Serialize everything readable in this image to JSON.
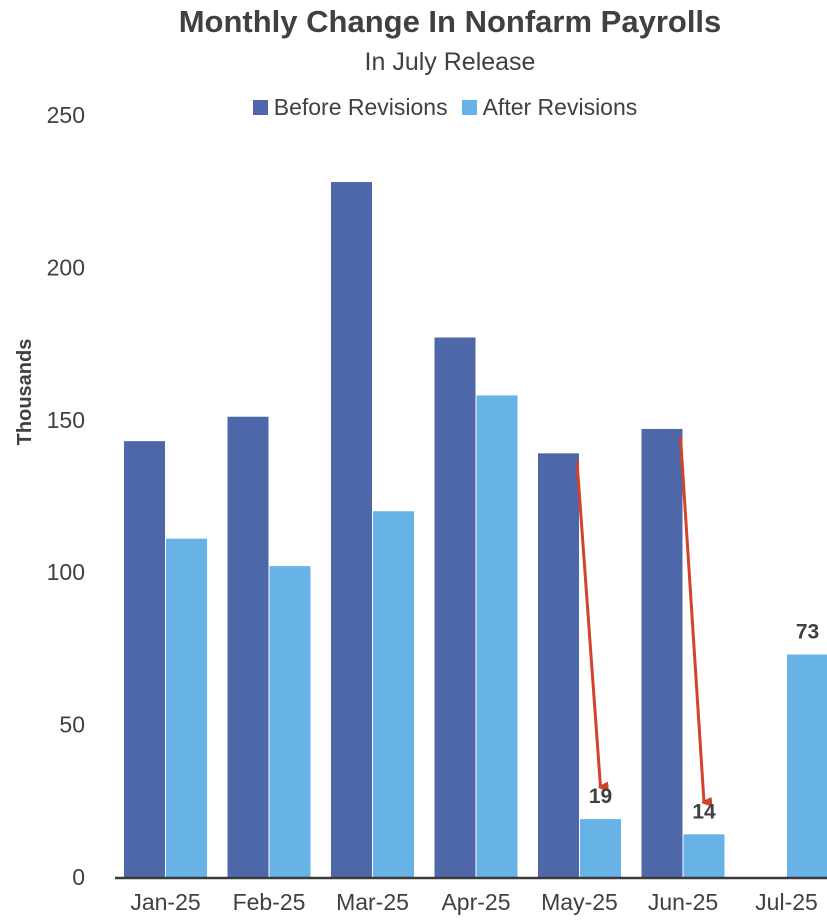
{
  "chart_data": {
    "type": "bar",
    "title": "Monthly Change In Nonfarm Payrolls",
    "subtitle": "In July Release",
    "ylabel": "Thousands",
    "xlabel": "",
    "ylim": [
      0,
      250
    ],
    "yticks": [
      0,
      50,
      100,
      150,
      200,
      250
    ],
    "categories": [
      "Jan-25",
      "Feb-25",
      "Mar-25",
      "Apr-25",
      "May-25",
      "Jun-25",
      "Jul-25"
    ],
    "series": [
      {
        "name": "Before Revisions",
        "color": "#4e67a8",
        "values": [
          143,
          151,
          228,
          177,
          139,
          147,
          null
        ]
      },
      {
        "name": "After Revisions",
        "color": "#67b3e8",
        "values": [
          111,
          102,
          120,
          158,
          19,
          14,
          73
        ]
      }
    ],
    "annotations": [
      {
        "text": "19",
        "category": "May-25",
        "series": "After Revisions"
      },
      {
        "text": "14",
        "category": "Jun-25",
        "series": "After Revisions"
      },
      {
        "text": "73",
        "category": "Jul-25",
        "series": "After Revisions"
      }
    ],
    "arrows": [
      {
        "category": "May-25",
        "from": 139,
        "to": 19,
        "color": "#d1432a"
      },
      {
        "category": "Jun-25",
        "from": 147,
        "to": 14,
        "color": "#d1432a"
      }
    ],
    "grid": false,
    "legend_position": "top-center"
  }
}
